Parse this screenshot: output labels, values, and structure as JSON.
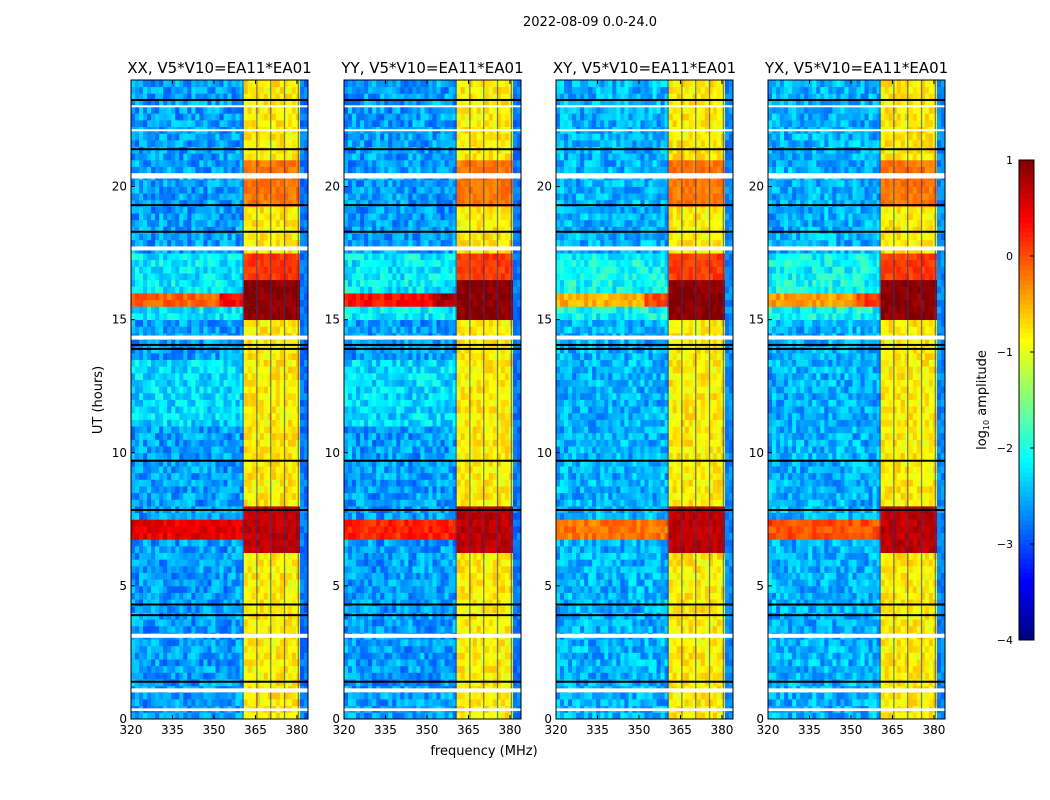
{
  "figure": {
    "suptitle": "2022-08-09 0.0-24.0",
    "ylabel": "UT (hours)",
    "xlabel": "frequency (MHz)"
  },
  "chart_data": {
    "type": "heatmap",
    "xlim": [
      320,
      384
    ],
    "ylim": [
      0,
      24
    ],
    "xticks": [
      "320",
      "335",
      "350",
      "365",
      "380"
    ],
    "xtick_values": [
      320,
      335,
      350,
      365,
      380
    ],
    "yticks": [
      "0",
      "5",
      "10",
      "15",
      "20"
    ],
    "ytick_values": [
      0,
      5,
      10,
      15,
      20
    ],
    "panels": [
      {
        "title": "XX, V5*V10=EA11*EA01",
        "pol": "XX",
        "rfi_7h": 0.5,
        "rfi_15h": -0.1,
        "bg": -2.6
      },
      {
        "title": "YY, V5*V10=EA11*EA01",
        "pol": "YY",
        "rfi_7h": 0.2,
        "rfi_15h": 0.3,
        "bg": -2.6
      },
      {
        "title": "XY, V5*V10=EA11*EA01",
        "pol": "XY",
        "rfi_7h": -0.2,
        "rfi_15h": -0.5,
        "bg": -2.5
      },
      {
        "title": "YX, V5*V10=EA11*EA01",
        "pol": "YX",
        "rfi_7h": 0.0,
        "rfi_15h": -0.4,
        "bg": -2.5
      }
    ],
    "strong_band_mhz": [
      360.5,
      380.5
    ],
    "subband_edges_mhz": [
      360.5,
      365.5,
      370.5,
      375.5,
      380.5
    ],
    "band_level": -0.8,
    "band_peak_intervals_hours": [
      [
        6.3,
        8.0,
        0.7
      ],
      [
        15.1,
        16.6,
        0.95
      ],
      [
        16.6,
        17.6,
        0.1
      ],
      [
        19.2,
        21.0,
        -0.2
      ]
    ],
    "rfi_intervals_hours": [
      [
        6.75,
        7.5
      ],
      [
        15.4,
        15.95
      ]
    ],
    "flagged_white_hours": [
      [
        20.3,
        20.5
      ],
      [
        17.6,
        17.75
      ],
      [
        14.25,
        14.4
      ],
      [
        3.05,
        3.2
      ],
      [
        1.0,
        1.15
      ],
      [
        0.3,
        0.4
      ],
      [
        23.0,
        23.05
      ],
      [
        22.1,
        22.15
      ]
    ],
    "flagged_black_hours": [
      23.25,
      21.4,
      19.3,
      18.3,
      14.05,
      13.9,
      9.7,
      7.85,
      4.3,
      3.9,
      1.4
    ],
    "colorbar": {
      "label": "log10 amplitude",
      "label_main": "log",
      "label_sub": "10",
      "label_rest": " amplitude",
      "range": [
        -4,
        1
      ],
      "ticks": [
        "1",
        "0",
        "−1",
        "−2",
        "−3",
        "−4"
      ],
      "tick_values": [
        1,
        0,
        -1,
        -2,
        -3,
        -4
      ],
      "colormap": "jet"
    }
  }
}
